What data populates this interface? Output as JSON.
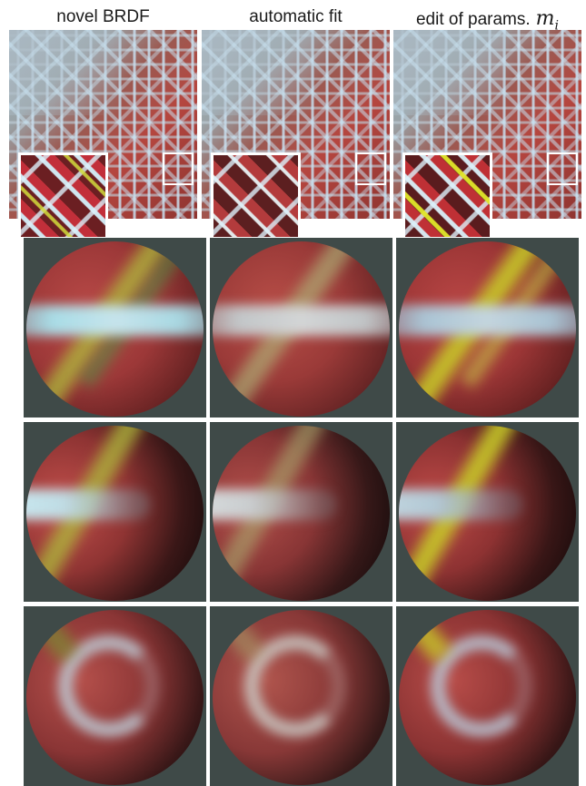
{
  "headers": {
    "col1": "novel BRDF",
    "col2": "automatic fit",
    "col3": "edit of params.",
    "col3_math": "m",
    "col3_math_sub": "i"
  },
  "colors": {
    "background": "#ffffff",
    "cell_background": "#3f4a48",
    "fabric_red": "#b5463f",
    "highlight_blue": "#c9dde8",
    "highlight_yellow": "#c8c84a"
  },
  "rows": [
    "woven-texture",
    "sphere-frontal-lit",
    "sphere-side-lit",
    "sphere-swirl"
  ],
  "columns": [
    "novel-brdf",
    "automatic-fit",
    "edited-params"
  ]
}
